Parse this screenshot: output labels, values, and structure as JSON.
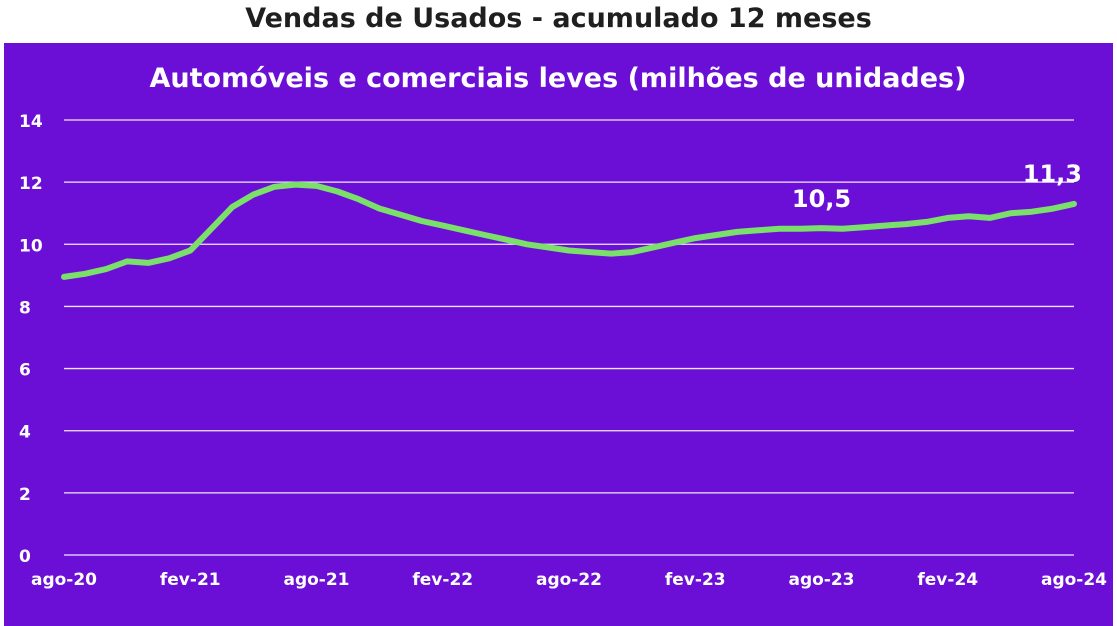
{
  "page": {
    "title": "Vendas de Usados - acumulado 12 meses"
  },
  "colors": {
    "background": "#6b0fd6",
    "line": "#7be06a",
    "text": "#ffffff",
    "page_title": "#1f1f1f"
  },
  "chart_data": {
    "type": "line",
    "title": "Automóveis e comerciais leves (milhões de unidades)",
    "xlabel": "",
    "ylabel": "",
    "ylim": [
      0,
      14
    ],
    "yticks": [
      "0",
      "2",
      "4",
      "6",
      "8",
      "10",
      "12",
      "14"
    ],
    "xticks": [
      "ago-20",
      "fev-21",
      "ago-21",
      "fev-22",
      "ago-22",
      "fev-23",
      "ago-23",
      "fev-24",
      "ago-24"
    ],
    "grid": true,
    "legend": "none",
    "x": [
      "ago-20",
      "set-20",
      "out-20",
      "nov-20",
      "dez-20",
      "jan-21",
      "fev-21",
      "mar-21",
      "abr-21",
      "mai-21",
      "jun-21",
      "jul-21",
      "ago-21",
      "set-21",
      "out-21",
      "nov-21",
      "dez-21",
      "jan-22",
      "fev-22",
      "mar-22",
      "abr-22",
      "mai-22",
      "jun-22",
      "jul-22",
      "ago-22",
      "set-22",
      "out-22",
      "nov-22",
      "dez-22",
      "jan-23",
      "fev-23",
      "mar-23",
      "abr-23",
      "mai-23",
      "jun-23",
      "jul-23",
      "ago-23",
      "set-23",
      "out-23",
      "nov-23",
      "dez-23",
      "jan-24",
      "fev-24",
      "mar-24",
      "abr-24",
      "mai-24",
      "jun-24",
      "jul-24",
      "ago-24"
    ],
    "series": [
      {
        "values": [
          8.95,
          9.05,
          9.2,
          9.45,
          9.4,
          9.55,
          9.8,
          10.5,
          11.2,
          11.6,
          11.85,
          11.92,
          11.88,
          11.7,
          11.45,
          11.15,
          10.95,
          10.75,
          10.6,
          10.45,
          10.3,
          10.15,
          10.0,
          9.9,
          9.8,
          9.75,
          9.7,
          9.75,
          9.9,
          10.05,
          10.2,
          10.3,
          10.4,
          10.45,
          10.5,
          10.5,
          10.52,
          10.5,
          10.55,
          10.6,
          10.65,
          10.72,
          10.85,
          10.9,
          10.85,
          11.0,
          11.05,
          11.15,
          11.3
        ]
      }
    ],
    "annotations": [
      {
        "text": "10,5",
        "x": "ago-23",
        "y": 10.5
      },
      {
        "text": "11,3",
        "x": "ago-24",
        "y": 11.3
      }
    ]
  }
}
